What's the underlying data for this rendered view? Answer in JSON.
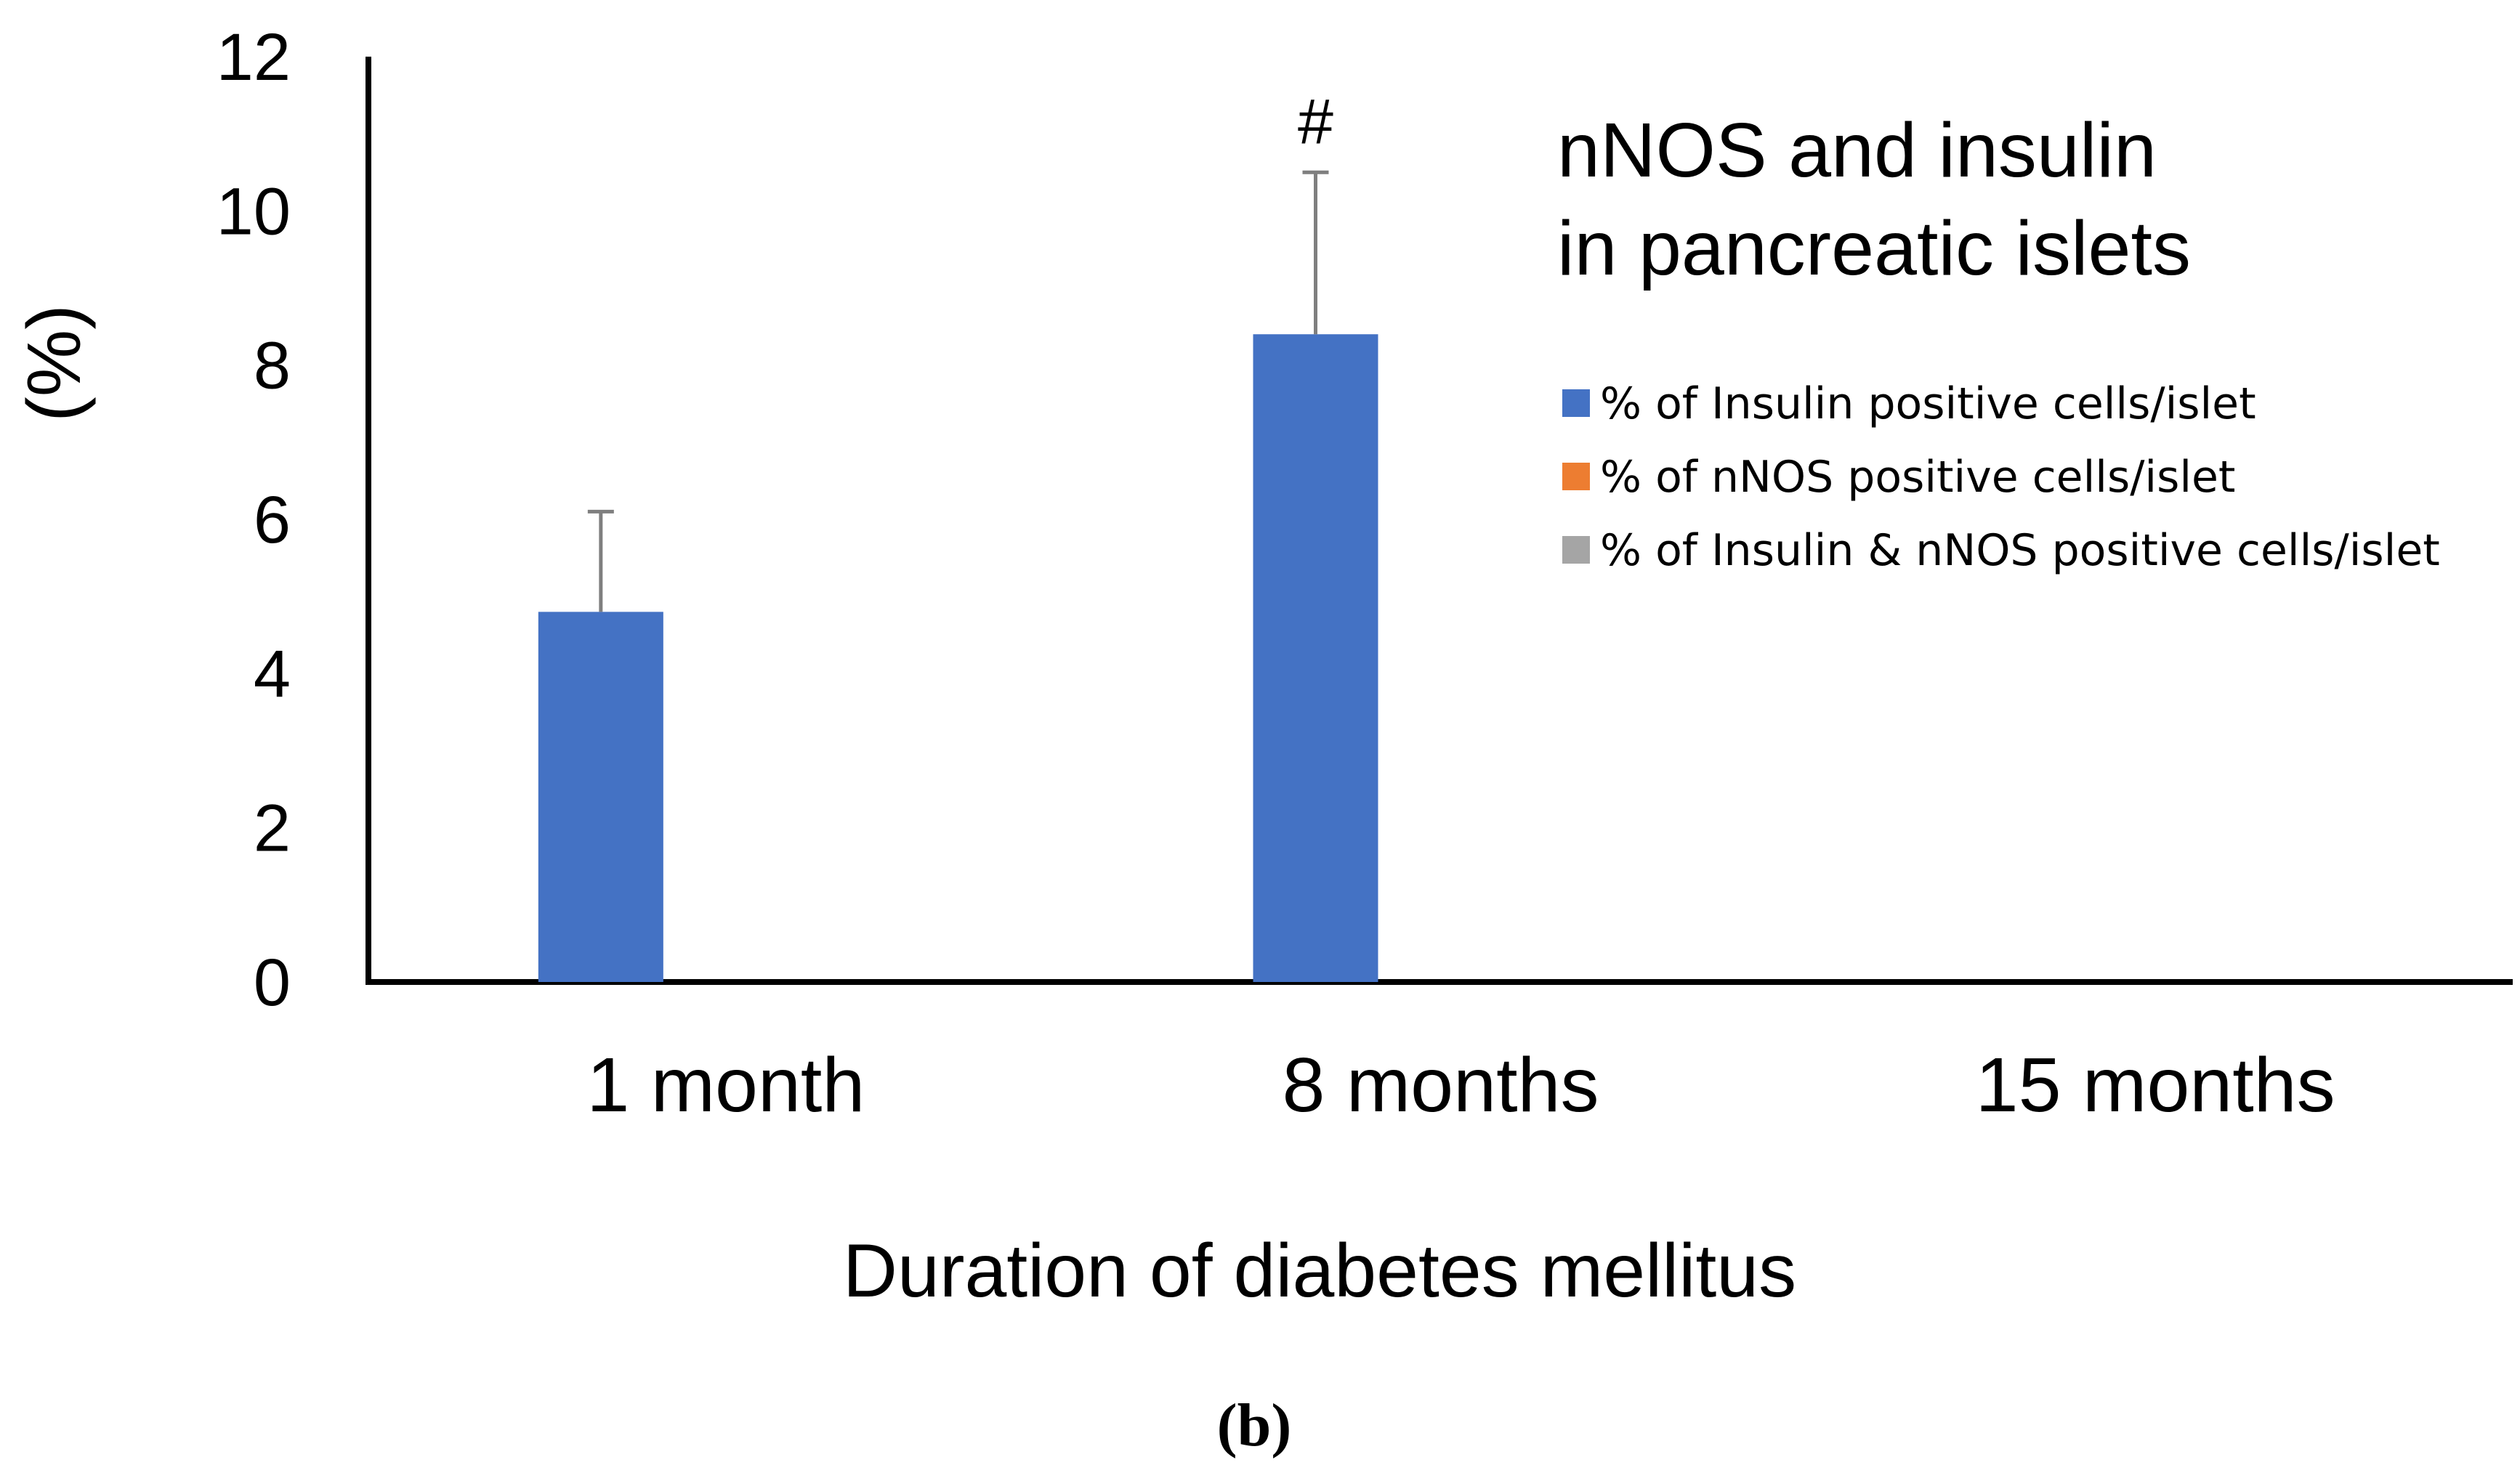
{
  "chart_data": {
    "type": "bar",
    "title": "nNOS and insulin in pancreatic islets",
    "title_lines": [
      "nNOS and insulin",
      "in pancreatic islets"
    ],
    "xlabel": "Duration of diabetes mellitus",
    "ylabel": "(%)",
    "ylim": [
      0,
      12
    ],
    "yticks": [
      0,
      2,
      4,
      6,
      8,
      10,
      12
    ],
    "categories": [
      "1 month",
      "8 months",
      "15 months"
    ],
    "series": [
      {
        "name": "% of Insulin positive cells/islet",
        "color": "#4472C4",
        "values": [
          4.8,
          8.4,
          0
        ],
        "errors": [
          1.3,
          2.1,
          0
        ]
      },
      {
        "name": "% of nNOS positive cells/islet",
        "color": "#ED7D31",
        "values": [
          0,
          0,
          0
        ],
        "errors": [
          0,
          0,
          0
        ]
      },
      {
        "name": "% of Insulin & nNOS positive cells/islet",
        "color": "#A5A5A5",
        "values": [
          0,
          0,
          0
        ],
        "errors": [
          0,
          0,
          0
        ]
      }
    ],
    "annotations": [
      {
        "text": "#",
        "category": "8 months",
        "series": 0
      }
    ],
    "legend_position": "top-right",
    "panel_label": "(b)",
    "error_bar_color": "#7F7F7F"
  }
}
